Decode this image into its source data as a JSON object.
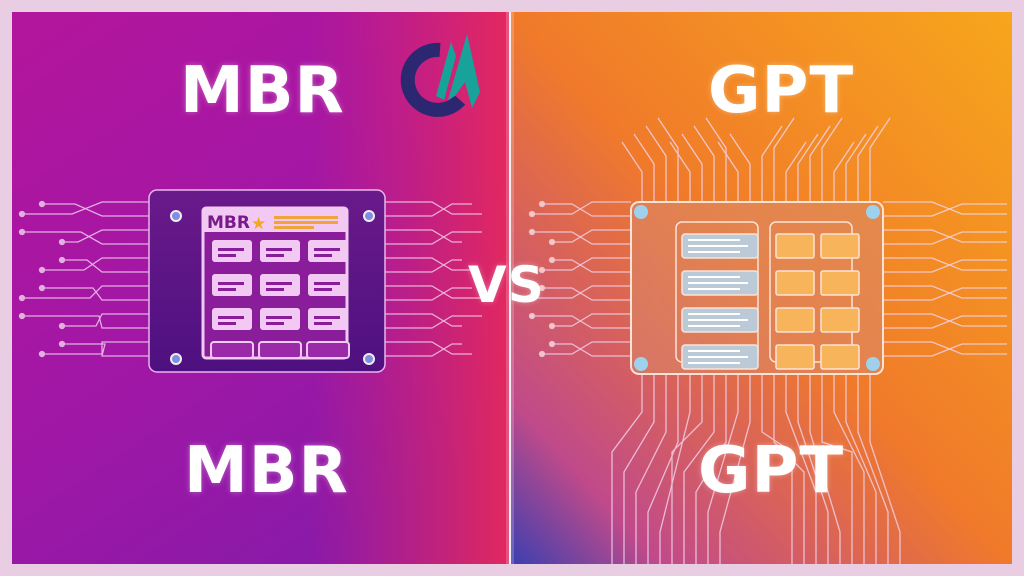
{
  "left": {
    "title_top": "MBR",
    "title_bottom": "MBR",
    "chip_label": "MBR",
    "star_icon": "star-icon",
    "color_top": "#b3169c",
    "color_bottom": "#8a1aa8"
  },
  "right": {
    "title_top": "GPT",
    "title_bottom": "GPT",
    "color_top": "#f39a1c",
    "color_bottom": "#3b3fb0"
  },
  "center": {
    "vs_label": "VS"
  },
  "logo": {
    "icon": "cm-logo-icon",
    "colors": [
      "#2b2770",
      "#17a39a"
    ]
  },
  "frame_color": "#e8cde3"
}
